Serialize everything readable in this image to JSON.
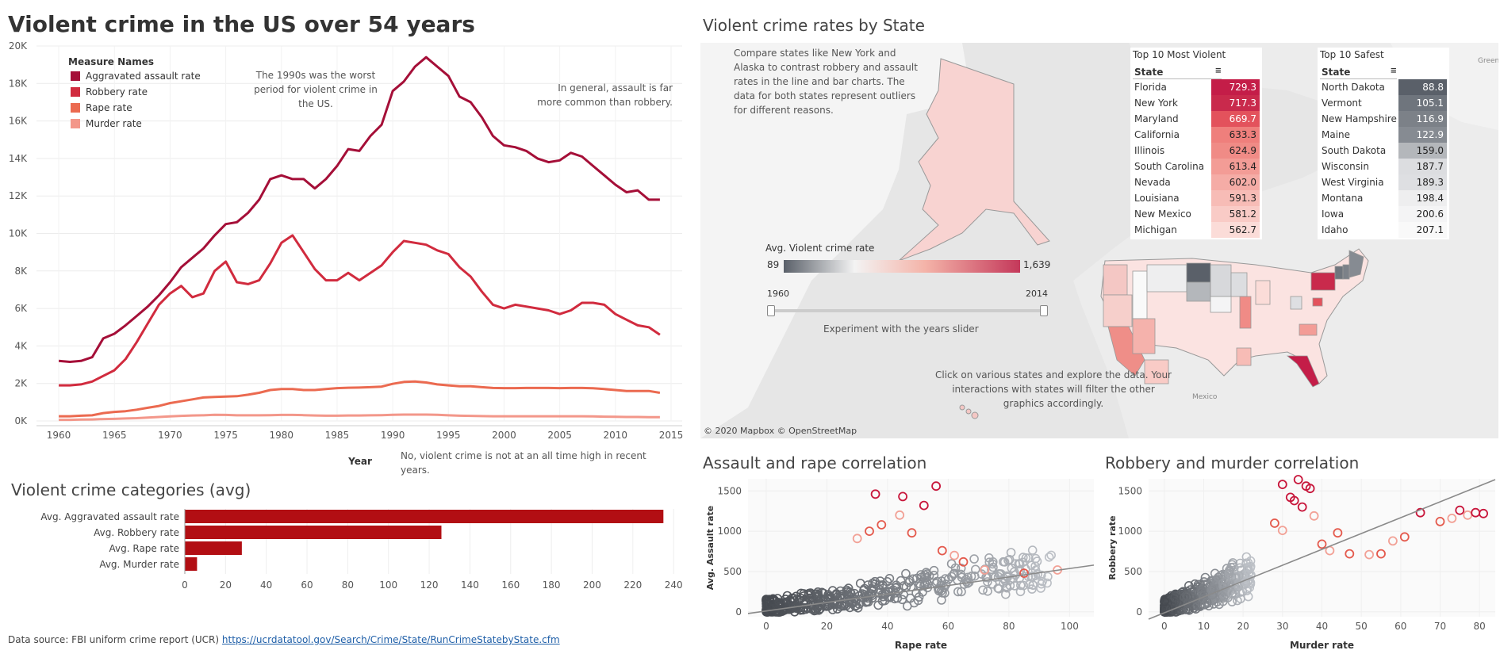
{
  "title": "Violent crime in the US over 54 years",
  "chart_data": [
    {
      "type": "line",
      "title": "Violent crime in the US over 54 years",
      "xlabel": "Year",
      "ylabel": "",
      "xlim": [
        1958,
        2016
      ],
      "ylim": [
        0,
        20000
      ],
      "xticks": [
        "1960",
        "1965",
        "1970",
        "1975",
        "1980",
        "1985",
        "1990",
        "1995",
        "2000",
        "2005",
        "2010",
        "2015"
      ],
      "yticks": [
        "0K",
        "2K",
        "4K",
        "6K",
        "8K",
        "10K",
        "12K",
        "14K",
        "16K",
        "18K",
        "20K"
      ],
      "legend_title": "Measure Names",
      "legend_position": "top-left",
      "x": [
        1960,
        1961,
        1962,
        1963,
        1964,
        1965,
        1966,
        1967,
        1968,
        1969,
        1970,
        1971,
        1972,
        1973,
        1974,
        1975,
        1976,
        1977,
        1978,
        1979,
        1980,
        1981,
        1982,
        1983,
        1984,
        1985,
        1986,
        1987,
        1988,
        1989,
        1990,
        1991,
        1992,
        1993,
        1994,
        1995,
        1996,
        1997,
        1998,
        1999,
        2000,
        2001,
        2002,
        2003,
        2004,
        2005,
        2006,
        2007,
        2008,
        2009,
        2010,
        2011,
        2012,
        2013,
        2014
      ],
      "series": [
        {
          "name": "Aggravated assault rate",
          "color": "#a50f38",
          "values": [
            3200,
            3150,
            3200,
            3400,
            4400,
            4650,
            5100,
            5600,
            6100,
            6700,
            7400,
            8200,
            8700,
            9200,
            9900,
            10500,
            10600,
            11100,
            11800,
            12900,
            13100,
            12900,
            12900,
            12400,
            12900,
            13600,
            14500,
            14400,
            15200,
            15800,
            17600,
            18100,
            18900,
            19400,
            18900,
            18400,
            17300,
            17000,
            16200,
            15200,
            14700,
            14600,
            14400,
            14000,
            13800,
            13900,
            14300,
            14100,
            13600,
            13100,
            12600,
            12200,
            12300,
            11800,
            11800
          ]
        },
        {
          "name": "Robbery rate",
          "color": "#d12b3e",
          "values": [
            1900,
            1900,
            1950,
            2100,
            2400,
            2700,
            3300,
            4200,
            5200,
            6200,
            6800,
            7200,
            6600,
            6800,
            8000,
            8500,
            7400,
            7300,
            7500,
            8400,
            9500,
            9900,
            9000,
            8100,
            7500,
            7500,
            7900,
            7500,
            7900,
            8300,
            9000,
            9600,
            9500,
            9400,
            9100,
            8900,
            8200,
            7700,
            6900,
            6200,
            6000,
            6200,
            6100,
            6000,
            5900,
            5700,
            5900,
            6300,
            6300,
            6200,
            5700,
            5400,
            5100,
            5000,
            4600
          ]
        },
        {
          "name": "Rape rate",
          "color": "#eb6a50",
          "values": [
            250,
            250,
            280,
            300,
            420,
            480,
            520,
            600,
            700,
            800,
            950,
            1050,
            1150,
            1250,
            1280,
            1300,
            1320,
            1400,
            1500,
            1650,
            1700,
            1700,
            1650,
            1650,
            1700,
            1750,
            1770,
            1780,
            1800,
            1830,
            1980,
            2080,
            2100,
            2050,
            1950,
            1900,
            1850,
            1850,
            1800,
            1760,
            1750,
            1750,
            1760,
            1760,
            1760,
            1750,
            1760,
            1760,
            1740,
            1700,
            1650,
            1600,
            1600,
            1600,
            1500
          ]
        },
        {
          "name": "Murder rate",
          "color": "#f3978a",
          "values": [
            60,
            60,
            70,
            80,
            100,
            110,
            130,
            150,
            180,
            210,
            240,
            270,
            290,
            300,
            330,
            320,
            300,
            300,
            300,
            310,
            320,
            320,
            310,
            290,
            280,
            280,
            290,
            290,
            300,
            310,
            330,
            340,
            340,
            340,
            330,
            300,
            280,
            270,
            260,
            250,
            250,
            250,
            250,
            250,
            250,
            250,
            250,
            250,
            240,
            230,
            220,
            210,
            210,
            200,
            200
          ]
        }
      ]
    },
    {
      "type": "bar",
      "orientation": "horizontal",
      "title": "Violent crime categories (avg)",
      "categories": [
        "Avg. Aggravated assault rate",
        "Avg. Robbery rate",
        "Avg. Rape rate",
        "Avg. Murder rate"
      ],
      "values": [
        235,
        126,
        28,
        6
      ],
      "xlim": [
        0,
        245
      ],
      "xticks": [
        "0",
        "20",
        "40",
        "60",
        "80",
        "100",
        "120",
        "140",
        "160",
        "180",
        "200",
        "220",
        "240"
      ],
      "color": "#b20e13"
    },
    {
      "type": "table",
      "title": "Top 10 Most Violent",
      "column_header": "State",
      "rows": [
        {
          "state": "Florida",
          "value": "729.3",
          "color": "#c41d48"
        },
        {
          "state": "New York",
          "value": "717.3",
          "color": "#c92a4c"
        },
        {
          "state": "Maryland",
          "value": "669.7",
          "color": "#e3525c"
        },
        {
          "state": "California",
          "value": "633.3",
          "color": "#ef7f7c"
        },
        {
          "state": "Illinois",
          "value": "624.9",
          "color": "#f08b86"
        },
        {
          "state": "South Carolina",
          "value": "613.4",
          "color": "#f39c96"
        },
        {
          "state": "Nevada",
          "value": "602.0",
          "color": "#f5aca6"
        },
        {
          "state": "Louisiana",
          "value": "591.3",
          "color": "#f7bcb6"
        },
        {
          "state": "New Mexico",
          "value": "581.2",
          "color": "#f9cbc6"
        },
        {
          "state": "Michigan",
          "value": "562.7",
          "color": "#fbdcd8"
        }
      ]
    },
    {
      "type": "table",
      "title": "Top 10 Safest",
      "column_header": "State",
      "rows": [
        {
          "state": "North Dakota",
          "value": "88.8",
          "color": "#5a6069"
        },
        {
          "state": "Vermont",
          "value": "105.1",
          "color": "#6f757d"
        },
        {
          "state": "New Hampshire",
          "value": "116.9",
          "color": "#7c8188"
        },
        {
          "state": "Maine",
          "value": "122.9",
          "color": "#868b92"
        },
        {
          "state": "South Dakota",
          "value": "159.0",
          "color": "#b4b7bb"
        },
        {
          "state": "Wisconsin",
          "value": "187.7",
          "color": "#dcdde0"
        },
        {
          "state": "West Virginia",
          "value": "189.3",
          "color": "#dedfe2"
        },
        {
          "state": "Montana",
          "value": "198.4",
          "color": "#eeeeef"
        },
        {
          "state": "Iowa",
          "value": "200.6",
          "color": "#f4f4f5"
        },
        {
          "state": "Idaho",
          "value": "207.1",
          "color": "#f9f9f9"
        }
      ]
    },
    {
      "type": "scatter",
      "title": "Assault and rape correlation",
      "xlabel": "Rape rate",
      "ylabel": "Avg. Assault rate",
      "xlim": [
        -6,
        108
      ],
      "ylim": [
        -60,
        1650
      ],
      "xticks": [
        "0",
        "20",
        "40",
        "60",
        "80",
        "100"
      ],
      "yticks": [
        "0",
        "500",
        "1000",
        "1500"
      ],
      "trend_line": [
        [
          -6,
          -20
        ],
        [
          108,
          580
        ]
      ],
      "highlight_points": [
        [
          36,
          1460
        ],
        [
          45,
          1430
        ],
        [
          56,
          1560
        ],
        [
          52,
          1320
        ],
        [
          38,
          1080
        ],
        [
          44,
          1200
        ],
        [
          34,
          1000
        ],
        [
          30,
          910
        ],
        [
          48,
          980
        ],
        [
          62,
          700
        ],
        [
          65,
          620
        ],
        [
          72,
          520
        ],
        [
          85,
          480
        ],
        [
          96,
          520
        ],
        [
          58,
          760
        ]
      ]
    },
    {
      "type": "scatter",
      "title": "Robbery and murder correlation",
      "xlabel": "Murder rate",
      "ylabel": "Robbery rate",
      "xlim": [
        -4,
        84
      ],
      "ylim": [
        -60,
        1650
      ],
      "xticks": [
        "0",
        "10",
        "20",
        "30",
        "40",
        "50",
        "60",
        "70",
        "80"
      ],
      "yticks": [
        "0",
        "500",
        "1000",
        "1500"
      ],
      "trend_line": [
        [
          -4,
          -90
        ],
        [
          84,
          1640
        ]
      ],
      "highlight_points": [
        [
          30,
          1580
        ],
        [
          34,
          1640
        ],
        [
          36,
          1560
        ],
        [
          37,
          1530
        ],
        [
          32,
          1420
        ],
        [
          33,
          1380
        ],
        [
          35,
          1300
        ],
        [
          38,
          1190
        ],
        [
          40,
          840
        ],
        [
          42,
          760
        ],
        [
          47,
          720
        ],
        [
          52,
          710
        ],
        [
          55,
          720
        ],
        [
          58,
          880
        ],
        [
          61,
          930
        ],
        [
          65,
          1230
        ],
        [
          70,
          1120
        ],
        [
          73,
          1160
        ],
        [
          75,
          1260
        ],
        [
          77,
          1200
        ],
        [
          79,
          1230
        ],
        [
          81,
          1220
        ],
        [
          28,
          1100
        ],
        [
          30,
          1010
        ],
        [
          44,
          980
        ]
      ]
    }
  ],
  "notes": {
    "nineties": "The 1990s was the worst period for violent crime in the US.",
    "assault": "In general, assault is far more common than robbery.",
    "alltime": "No, violent crime is not at an all time high in recent years."
  },
  "map": {
    "title": "Violent crime rates by State",
    "compare_note": "Compare states like New York and Alaska to contrast robbery and assault rates in the line and bar charts. The data for both states represent outliers for different reasons.",
    "click_note": "Click on various states and explore the data. Your interactions with states will filter the other graphics accordingly.",
    "legend_title": "Avg. Violent crime rate",
    "legend_min": "89",
    "legend_max": "1,639",
    "slider_start": "1960",
    "slider_end": "2014",
    "slider_caption": "Experiment with the years slider",
    "attribution": "© 2020 Mapbox © OpenStreetMap",
    "label_greenland": "Greenland",
    "label_mexico": "Mexico"
  },
  "footer": {
    "source_label": "Data source: FBI uniform crime report (UCR)",
    "source_link": "https://ucrdatatool.gov/Search/Crime/State/RunCrimeStatebyState.cfm"
  }
}
